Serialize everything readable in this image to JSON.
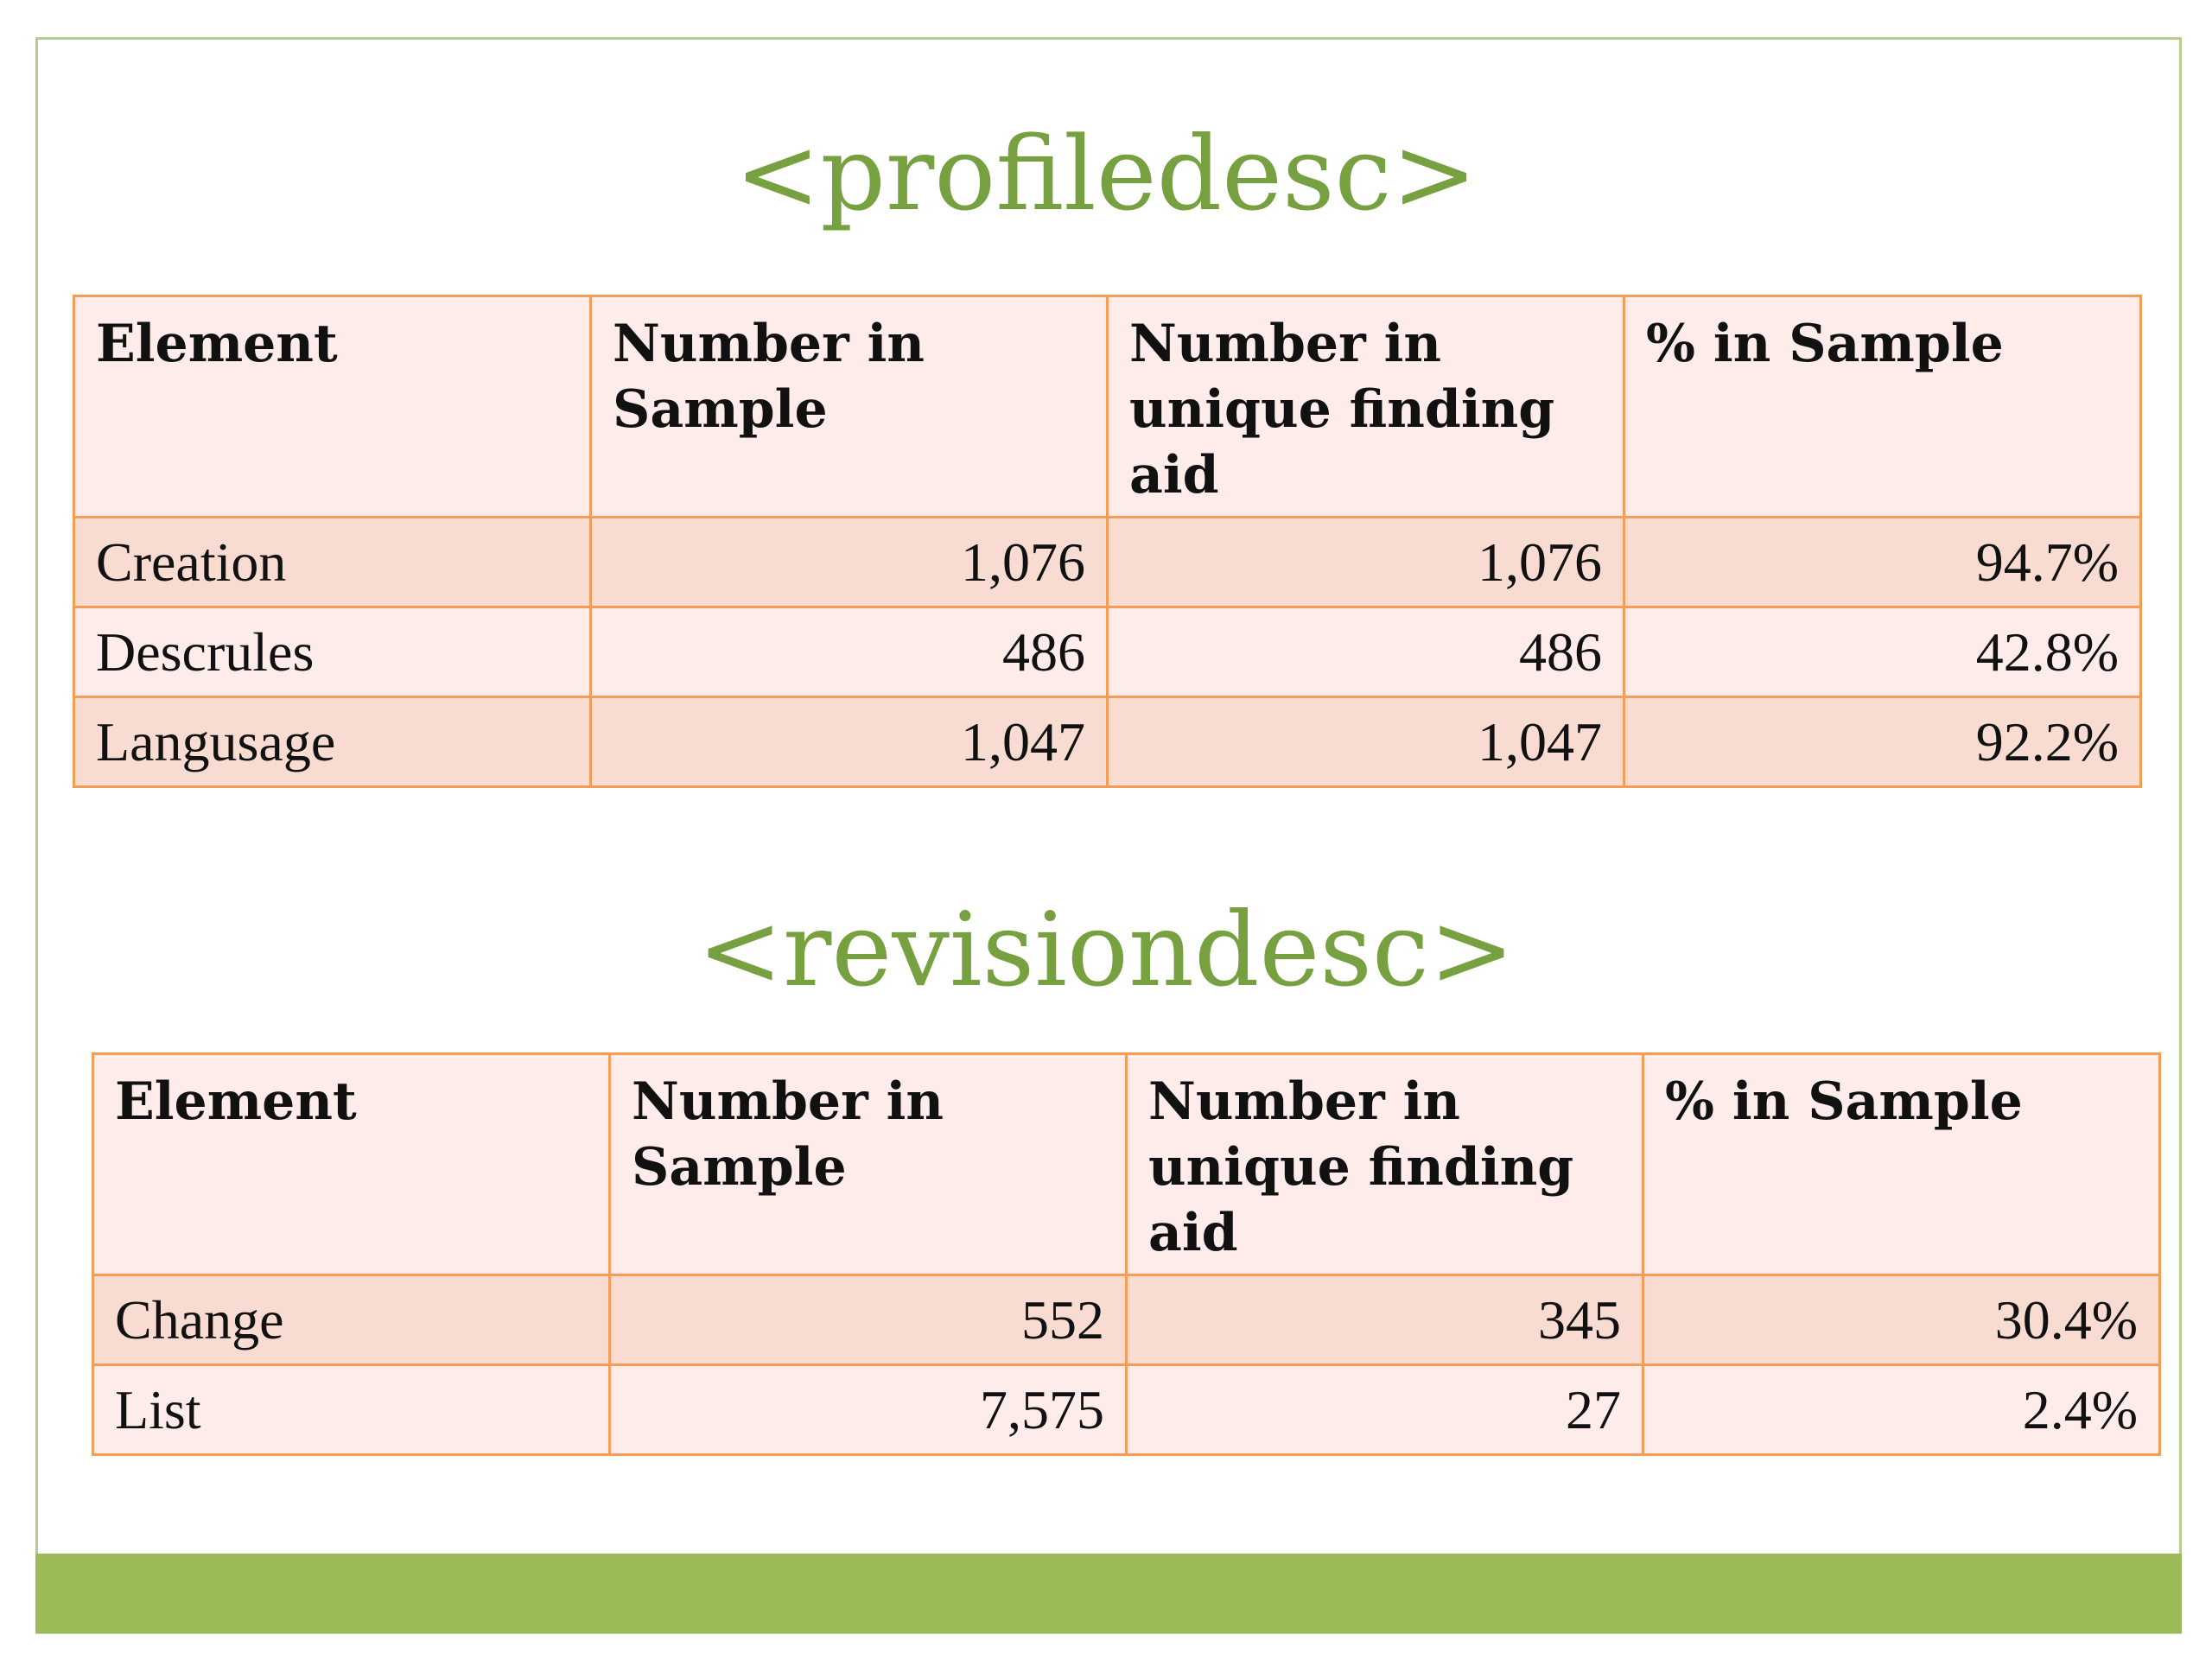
{
  "profiledesc": {
    "title": "<profiledesc>",
    "headers": [
      "Element",
      "Number in Sample",
      "Number in unique finding aid",
      "% in Sample"
    ],
    "rows": [
      {
        "element": "Creation",
        "number_in_sample": "1,076",
        "number_in_unique": "1,076",
        "pct_in_sample": "94.7%"
      },
      {
        "element": "Descrules",
        "number_in_sample": "486",
        "number_in_unique": "486",
        "pct_in_sample": "42.8%"
      },
      {
        "element": "Langusage",
        "number_in_sample": "1,047",
        "number_in_unique": "1,047",
        "pct_in_sample": "92.2%"
      }
    ]
  },
  "revisiondesc": {
    "title": "<revisiondesc>",
    "headers": [
      "Element",
      "Number in Sample",
      "Number in unique finding aid",
      "% in Sample"
    ],
    "rows": [
      {
        "element": "Change",
        "number_in_sample": "552",
        "number_in_unique": "345",
        "pct_in_sample": "30.4%"
      },
      {
        "element": "List",
        "number_in_sample": "7,575",
        "number_in_unique": "27",
        "pct_in_sample": "2.4%"
      }
    ]
  },
  "colors": {
    "title_green": "#77a041",
    "footer_green": "#9bbb59",
    "border_orange": "#f59d56",
    "row_dark": "#f9dcd1",
    "row_light": "#fdecea"
  }
}
